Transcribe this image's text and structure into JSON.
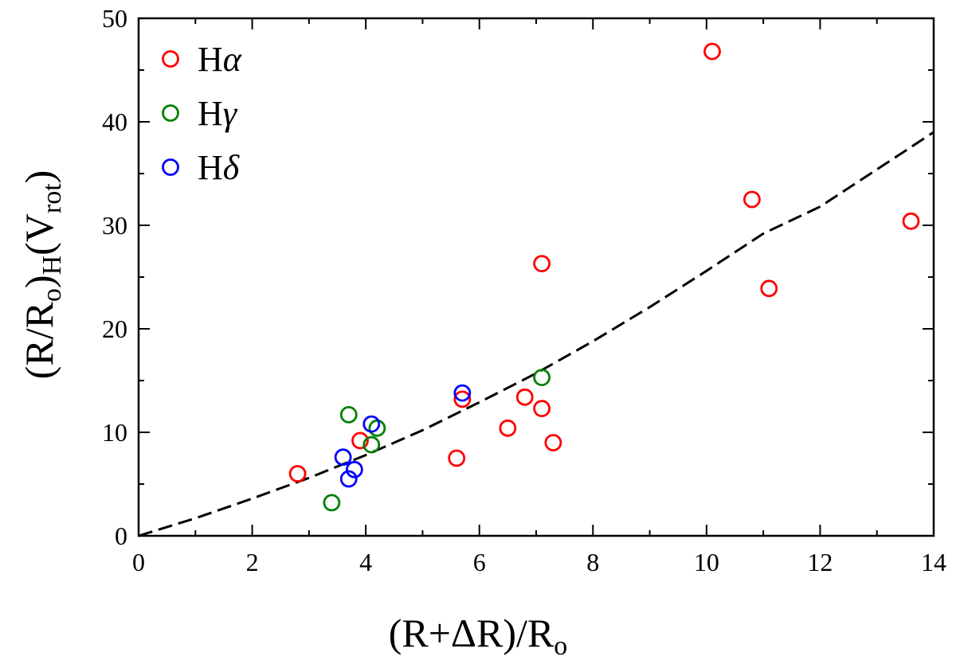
{
  "chart_data": {
    "type": "scatter",
    "title": "",
    "xlabel": {
      "main": "(R+ΔR)/R",
      "sub": "o"
    },
    "ylabel": {
      "p1": "(R/R",
      "sub1": "o",
      "p2": ")",
      "sub2": "H",
      "p3": "(V",
      "sub3": "rot",
      "p4": ")"
    },
    "xlim": [
      0,
      14
    ],
    "ylim": [
      0,
      50
    ],
    "x_ticks": [
      0,
      2,
      4,
      6,
      8,
      10,
      12,
      14
    ],
    "y_ticks": [
      0,
      10,
      20,
      30,
      40,
      50
    ],
    "grid": false,
    "legend_position": "top-left",
    "series": [
      {
        "name": "Hα",
        "base": "H",
        "greek": "α",
        "color": "#ff0000",
        "points": [
          [
            2.8,
            6.0
          ],
          [
            3.9,
            9.2
          ],
          [
            5.6,
            7.5
          ],
          [
            5.7,
            13.2
          ],
          [
            6.5,
            10.4
          ],
          [
            6.8,
            13.4
          ],
          [
            7.1,
            12.3
          ],
          [
            7.3,
            9.0
          ],
          [
            7.1,
            26.3
          ],
          [
            10.1,
            46.8
          ],
          [
            10.8,
            32.5
          ],
          [
            11.1,
            23.9
          ],
          [
            13.6,
            30.4
          ]
        ]
      },
      {
        "name": "Hγ",
        "base": "H",
        "greek": "γ",
        "color": "#008000",
        "points": [
          [
            3.4,
            3.2
          ],
          [
            3.7,
            11.7
          ],
          [
            4.1,
            8.8
          ],
          [
            4.2,
            10.4
          ],
          [
            7.1,
            15.3
          ]
        ]
      },
      {
        "name": "Hδ",
        "base": "H",
        "greek": "δ",
        "color": "#0000ff",
        "points": [
          [
            3.6,
            7.6
          ],
          [
            3.7,
            5.5
          ],
          [
            3.8,
            6.4
          ],
          [
            4.1,
            10.8
          ],
          [
            5.7,
            13.8
          ]
        ]
      }
    ],
    "fit_line": {
      "style": "dashed",
      "color": "#000000",
      "points": [
        [
          0,
          0
        ],
        [
          1,
          1.7
        ],
        [
          2,
          3.6
        ],
        [
          3,
          5.6
        ],
        [
          4,
          7.8
        ],
        [
          5,
          10.2
        ],
        [
          6,
          12.9
        ],
        [
          7,
          15.7
        ],
        [
          8,
          18.8
        ],
        [
          9,
          22.1
        ],
        [
          10,
          25.6
        ],
        [
          11,
          29.2
        ],
        [
          12,
          31.8
        ],
        [
          13,
          35.4
        ],
        [
          14,
          39.0
        ]
      ]
    }
  }
}
